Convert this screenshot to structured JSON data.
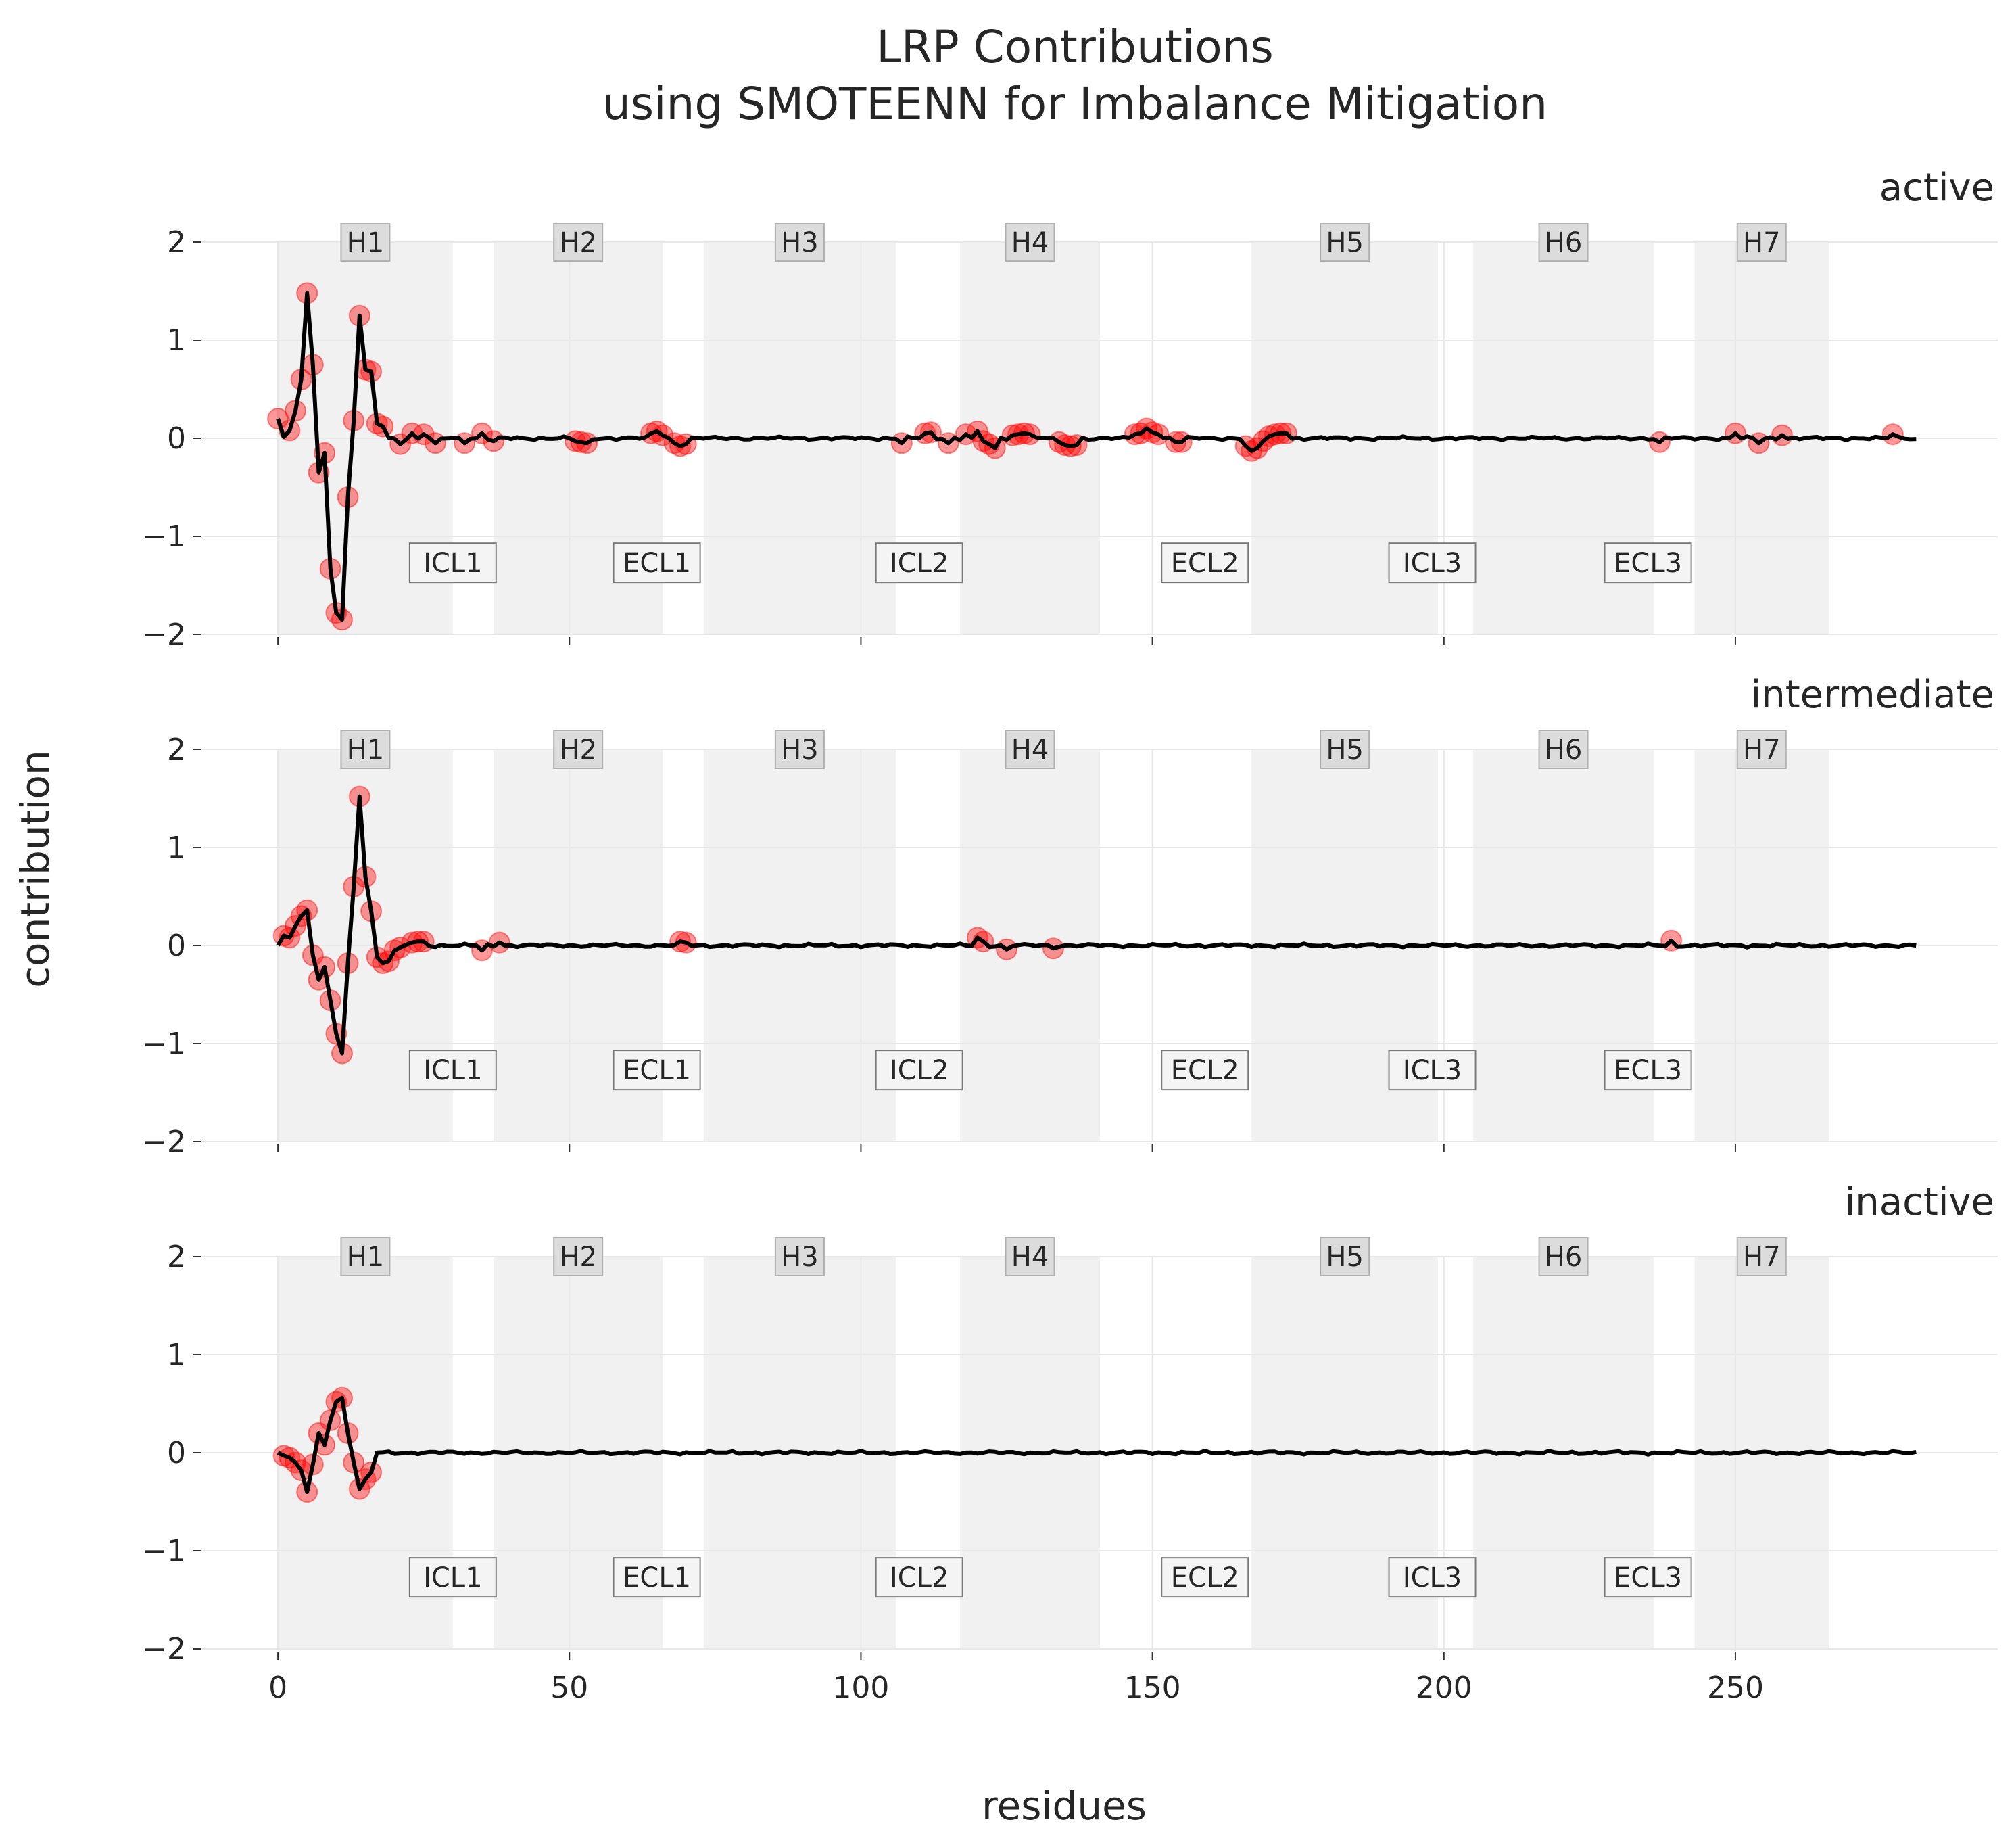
{
  "chart_data": {
    "type": "line",
    "title_lines": [
      "LRP Contributions",
      "using SMOTEENN for Imbalance Mitigation"
    ],
    "xlabel": "residues",
    "ylabel": "contribution",
    "xlim": [
      -13,
      295
    ],
    "ylim": [
      -2,
      2
    ],
    "x_ticks": [
      0,
      50,
      100,
      150,
      200,
      250
    ],
    "y_ticks": [
      2,
      1,
      0,
      -1,
      -2
    ],
    "y_tick_labels": [
      "2",
      "1",
      "0",
      "−1",
      "−2"
    ],
    "colors": {
      "line": "#000000",
      "highlight": "#ff0000",
      "region": "#f0f0f0",
      "grid": "#e8e8e8",
      "helix_box": "#dcdcdc",
      "loop_box": "#f4f4f4"
    },
    "helices": [
      {
        "label": "H1",
        "start": 0,
        "end": 30
      },
      {
        "label": "H2",
        "start": 37,
        "end": 66
      },
      {
        "label": "H3",
        "start": 73,
        "end": 106
      },
      {
        "label": "H4",
        "start": 117,
        "end": 141
      },
      {
        "label": "H5",
        "start": 167,
        "end": 199
      },
      {
        "label": "H6",
        "start": 205,
        "end": 236
      },
      {
        "label": "H7",
        "start": 243,
        "end": 266
      }
    ],
    "loops": [
      {
        "label": "ICL1",
        "center": 30
      },
      {
        "label": "ECL1",
        "center": 65
      },
      {
        "label": "ICL2",
        "center": 110
      },
      {
        "label": "ECL2",
        "center": 159
      },
      {
        "label": "ICL3",
        "center": 198
      },
      {
        "label": "ECL3",
        "center": 235
      }
    ],
    "panels": [
      {
        "name": "active",
        "points": [
          [
            0,
            0.2
          ],
          [
            2,
            0.08
          ],
          [
            3,
            0.28
          ],
          [
            4,
            0.6
          ],
          [
            5,
            1.48
          ],
          [
            6,
            0.75
          ],
          [
            7,
            -0.35
          ],
          [
            8,
            -0.15
          ],
          [
            9,
            -1.33
          ],
          [
            10,
            -1.78
          ],
          [
            11,
            -1.85
          ],
          [
            12,
            -0.6
          ],
          [
            13,
            0.18
          ],
          [
            14,
            1.25
          ],
          [
            15,
            0.7
          ],
          [
            16,
            0.68
          ],
          [
            17,
            0.15
          ],
          [
            18,
            0.12
          ],
          [
            21,
            -0.06
          ],
          [
            23,
            0.05
          ],
          [
            25,
            0.04
          ],
          [
            27,
            -0.05
          ],
          [
            32,
            -0.05
          ],
          [
            35,
            0.05
          ],
          [
            37,
            -0.03
          ],
          [
            51,
            -0.03
          ],
          [
            52,
            -0.04
          ],
          [
            53,
            -0.05
          ],
          [
            64,
            0.05
          ],
          [
            65,
            0.07
          ],
          [
            66,
            0.03
          ],
          [
            68,
            -0.05
          ],
          [
            69,
            -0.08
          ],
          [
            70,
            -0.06
          ],
          [
            107,
            -0.05
          ],
          [
            111,
            0.05
          ],
          [
            112,
            0.06
          ],
          [
            115,
            -0.05
          ],
          [
            118,
            0.04
          ],
          [
            120,
            0.07
          ],
          [
            121,
            -0.03
          ],
          [
            122,
            -0.06
          ],
          [
            123,
            -0.1
          ],
          [
            126,
            0.03
          ],
          [
            127,
            0.04
          ],
          [
            128,
            0.05
          ],
          [
            129,
            0.04
          ],
          [
            134,
            -0.04
          ],
          [
            135,
            -0.07
          ],
          [
            136,
            -0.08
          ],
          [
            137,
            -0.07
          ],
          [
            147,
            0.04
          ],
          [
            148,
            0.05
          ],
          [
            149,
            0.1
          ],
          [
            150,
            0.06
          ],
          [
            151,
            0.04
          ],
          [
            154,
            -0.04
          ],
          [
            155,
            -0.04
          ],
          [
            166,
            -0.08
          ],
          [
            167,
            -0.13
          ],
          [
            168,
            -0.1
          ],
          [
            169,
            -0.03
          ],
          [
            170,
            0.02
          ],
          [
            171,
            0.04
          ],
          [
            172,
            0.05
          ],
          [
            173,
            0.05
          ],
          [
            237,
            -0.04
          ],
          [
            250,
            0.05
          ],
          [
            254,
            -0.05
          ],
          [
            258,
            0.03
          ],
          [
            277,
            0.04
          ]
        ],
        "line_extra": [
          [
            6,
            0.6
          ],
          [
            12,
            -0.9
          ],
          [
            13,
            0.3
          ]
        ]
      },
      {
        "name": "intermediate",
        "points": [
          [
            1,
            0.1
          ],
          [
            2,
            0.08
          ],
          [
            3,
            0.2
          ],
          [
            4,
            0.3
          ],
          [
            5,
            0.36
          ],
          [
            6,
            -0.1
          ],
          [
            7,
            -0.35
          ],
          [
            8,
            -0.22
          ],
          [
            9,
            -0.56
          ],
          [
            10,
            -0.9
          ],
          [
            11,
            -1.1
          ],
          [
            12,
            -0.18
          ],
          [
            13,
            0.6
          ],
          [
            14,
            1.52
          ],
          [
            15,
            0.7
          ],
          [
            16,
            0.35
          ],
          [
            17,
            -0.12
          ],
          [
            18,
            -0.18
          ],
          [
            19,
            -0.16
          ],
          [
            20,
            -0.05
          ],
          [
            21,
            -0.02
          ],
          [
            23,
            0.03
          ],
          [
            24,
            0.04
          ],
          [
            25,
            0.04
          ],
          [
            35,
            -0.05
          ],
          [
            38,
            0.03
          ],
          [
            69,
            0.04
          ],
          [
            70,
            0.03
          ],
          [
            120,
            0.08
          ],
          [
            121,
            0.04
          ],
          [
            125,
            -0.04
          ],
          [
            133,
            -0.03
          ],
          [
            239,
            0.05
          ]
        ],
        "line_extra": []
      },
      {
        "name": "inactive",
        "points": [
          [
            1,
            -0.03
          ],
          [
            2,
            -0.05
          ],
          [
            3,
            -0.1
          ],
          [
            4,
            -0.18
          ],
          [
            5,
            -0.4
          ],
          [
            6,
            -0.12
          ],
          [
            7,
            0.2
          ],
          [
            8,
            0.08
          ],
          [
            9,
            0.33
          ],
          [
            10,
            0.52
          ],
          [
            11,
            0.56
          ],
          [
            12,
            0.2
          ],
          [
            13,
            -0.1
          ],
          [
            14,
            -0.37
          ],
          [
            15,
            -0.27
          ],
          [
            16,
            -0.2
          ]
        ],
        "line_extra": []
      }
    ]
  }
}
